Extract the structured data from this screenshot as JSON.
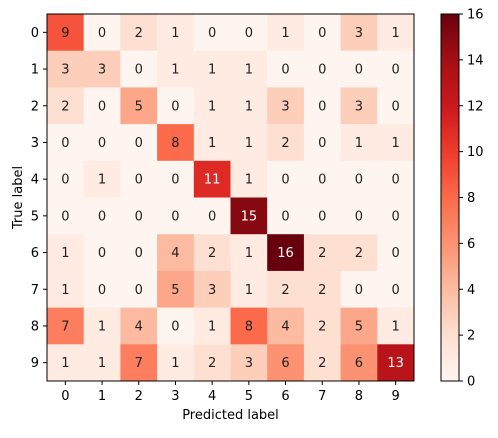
{
  "chart_data": {
    "type": "heatmap",
    "title": "",
    "xlabel": "Predicted label",
    "ylabel": "True label",
    "x_categories": [
      "0",
      "1",
      "2",
      "3",
      "4",
      "5",
      "6",
      "7",
      "8",
      "9"
    ],
    "y_categories": [
      "0",
      "1",
      "2",
      "3",
      "4",
      "5",
      "6",
      "7",
      "8",
      "9"
    ],
    "matrix": [
      [
        9,
        0,
        2,
        1,
        0,
        0,
        1,
        0,
        3,
        1
      ],
      [
        3,
        3,
        0,
        1,
        1,
        1,
        0,
        0,
        0,
        0
      ],
      [
        2,
        0,
        5,
        0,
        1,
        1,
        3,
        0,
        3,
        0
      ],
      [
        0,
        0,
        0,
        8,
        1,
        1,
        2,
        0,
        1,
        1
      ],
      [
        0,
        1,
        0,
        0,
        11,
        1,
        0,
        0,
        0,
        0
      ],
      [
        0,
        0,
        0,
        0,
        0,
        15,
        0,
        0,
        0,
        0
      ],
      [
        1,
        0,
        0,
        4,
        2,
        1,
        16,
        2,
        2,
        0
      ],
      [
        1,
        0,
        0,
        5,
        3,
        1,
        2,
        2,
        0,
        0
      ],
      [
        7,
        1,
        4,
        0,
        1,
        8,
        4,
        2,
        5,
        1
      ],
      [
        1,
        1,
        7,
        1,
        2,
        3,
        6,
        2,
        6,
        13
      ]
    ],
    "colormap": "Reds",
    "vmin": 0,
    "vmax": 16,
    "colorbar_ticks": [
      "0",
      "2",
      "4",
      "6",
      "8",
      "10",
      "12",
      "14",
      "16"
    ],
    "grid": false,
    "colorbar_position": "right"
  }
}
